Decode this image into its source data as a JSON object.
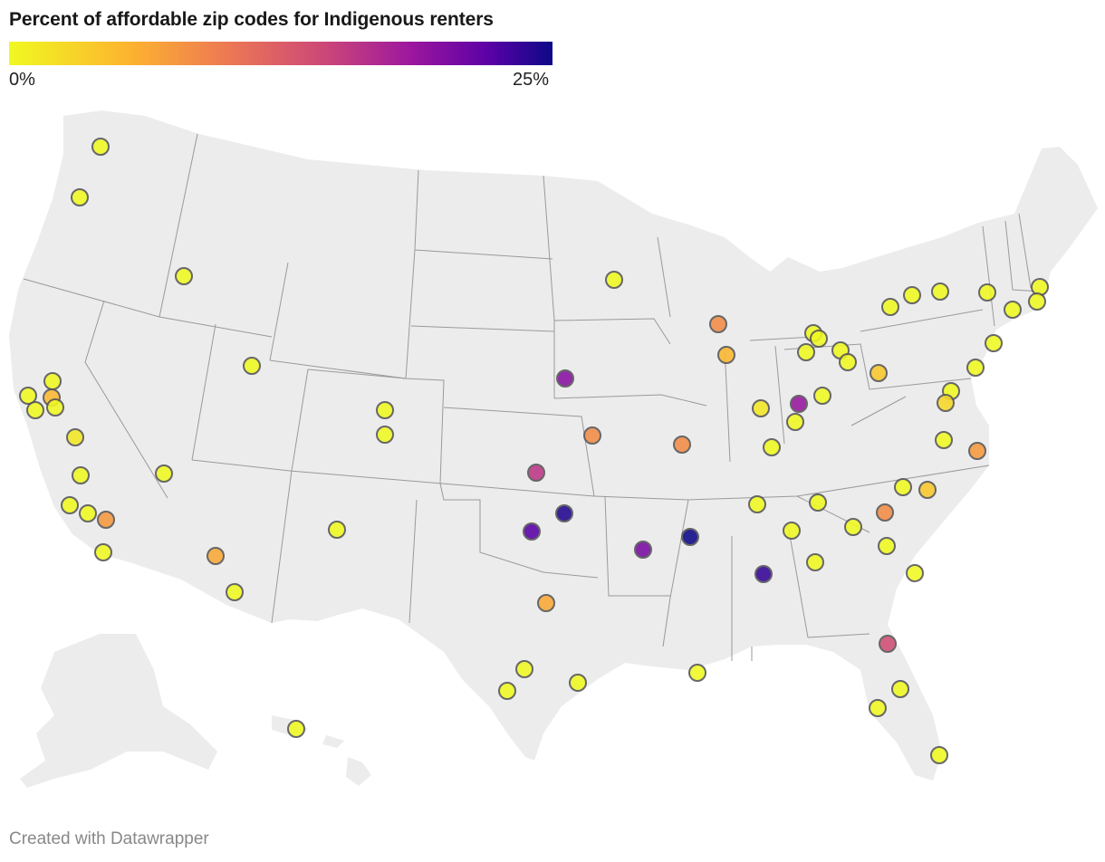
{
  "title": "Percent of affordable zip codes for Indigenous renters",
  "legend": {
    "min_label": "0%",
    "max_label": "25%",
    "min_value": 0,
    "max_value": 25,
    "colors": [
      "#f0f921",
      "#fdb42f",
      "#ed7953",
      "#cc4778",
      "#9c179e",
      "#5c01a6",
      "#0d0887"
    ]
  },
  "footer": "Created with Datawrapper",
  "map": {
    "region": "United States (including Alaska and Hawaii insets)",
    "markers": [
      {
        "id": "seattle-area-1",
        "value": 0
      },
      {
        "id": "seattle-area-2",
        "value": 0
      },
      {
        "id": "boise",
        "value": 0
      },
      {
        "id": "salt-lake-city",
        "value": 0
      },
      {
        "id": "sf-bay-1",
        "value": 0
      },
      {
        "id": "sf-bay-2",
        "value": 0
      },
      {
        "id": "sf-bay-3",
        "value": 4
      },
      {
        "id": "sf-bay-4",
        "value": 0
      },
      {
        "id": "sf-bay-5",
        "value": 0
      },
      {
        "id": "fresno",
        "value": 1
      },
      {
        "id": "bakersfield",
        "value": 0
      },
      {
        "id": "ventura",
        "value": 0
      },
      {
        "id": "los-angeles",
        "value": 0
      },
      {
        "id": "riverside",
        "value": 6
      },
      {
        "id": "san-diego",
        "value": 0
      },
      {
        "id": "las-vegas",
        "value": 0
      },
      {
        "id": "phoenix",
        "value": 5
      },
      {
        "id": "tucson",
        "value": 0
      },
      {
        "id": "albuquerque",
        "value": 0
      },
      {
        "id": "denver-1",
        "value": 0
      },
      {
        "id": "denver-2",
        "value": 0
      },
      {
        "id": "omaha",
        "value": 18
      },
      {
        "id": "kansas-city",
        "value": 7
      },
      {
        "id": "wichita",
        "value": 14
      },
      {
        "id": "tulsa",
        "value": 24
      },
      {
        "id": "oklahoma-city",
        "value": 21
      },
      {
        "id": "dallas",
        "value": 5
      },
      {
        "id": "austin",
        "value": 0
      },
      {
        "id": "san-antonio",
        "value": 0
      },
      {
        "id": "houston",
        "value": 0
      },
      {
        "id": "minneapolis",
        "value": 0
      },
      {
        "id": "milwaukee",
        "value": 7
      },
      {
        "id": "chicago",
        "value": 4
      },
      {
        "id": "st-louis",
        "value": 7
      },
      {
        "id": "little-rock",
        "value": 19
      },
      {
        "id": "memphis",
        "value": 25
      },
      {
        "id": "birmingham",
        "value": 23
      },
      {
        "id": "new-orleans",
        "value": 0
      },
      {
        "id": "grand-rapids",
        "value": 0
      },
      {
        "id": "indianapolis",
        "value": 1
      },
      {
        "id": "dayton",
        "value": 17
      },
      {
        "id": "cincinnati",
        "value": 0
      },
      {
        "id": "columbus",
        "value": 0
      },
      {
        "id": "louisville",
        "value": 0
      },
      {
        "id": "nashville",
        "value": 0
      },
      {
        "id": "knoxville",
        "value": 0
      },
      {
        "id": "chattanooga",
        "value": 0
      },
      {
        "id": "atlanta",
        "value": 0
      },
      {
        "id": "detroit",
        "value": 0
      },
      {
        "id": "toledo",
        "value": 0
      },
      {
        "id": "cleveland",
        "value": 0
      },
      {
        "id": "akron",
        "value": 0
      },
      {
        "id": "pittsburgh",
        "value": 3
      },
      {
        "id": "buffalo",
        "value": 0
      },
      {
        "id": "rochester",
        "value": 0
      },
      {
        "id": "syracuse",
        "value": 0
      },
      {
        "id": "albany",
        "value": 0
      },
      {
        "id": "boston",
        "value": 0
      },
      {
        "id": "providence",
        "value": 0
      },
      {
        "id": "hartford",
        "value": 0
      },
      {
        "id": "new-york",
        "value": 0
      },
      {
        "id": "philadelphia",
        "value": 0
      },
      {
        "id": "baltimore",
        "value": 0
      },
      {
        "id": "washington-dc",
        "value": 2
      },
      {
        "id": "richmond",
        "value": 0
      },
      {
        "id": "virginia-beach",
        "value": 6
      },
      {
        "id": "greensboro",
        "value": 0
      },
      {
        "id": "raleigh",
        "value": 3
      },
      {
        "id": "charlotte",
        "value": 7
      },
      {
        "id": "greenville",
        "value": 0
      },
      {
        "id": "columbia",
        "value": 0
      },
      {
        "id": "charleston",
        "value": 0
      },
      {
        "id": "jacksonville",
        "value": 12
      },
      {
        "id": "orlando",
        "value": 0
      },
      {
        "id": "tampa",
        "value": 0
      },
      {
        "id": "miami",
        "value": 0
      },
      {
        "id": "honolulu",
        "value": 0
      }
    ]
  }
}
